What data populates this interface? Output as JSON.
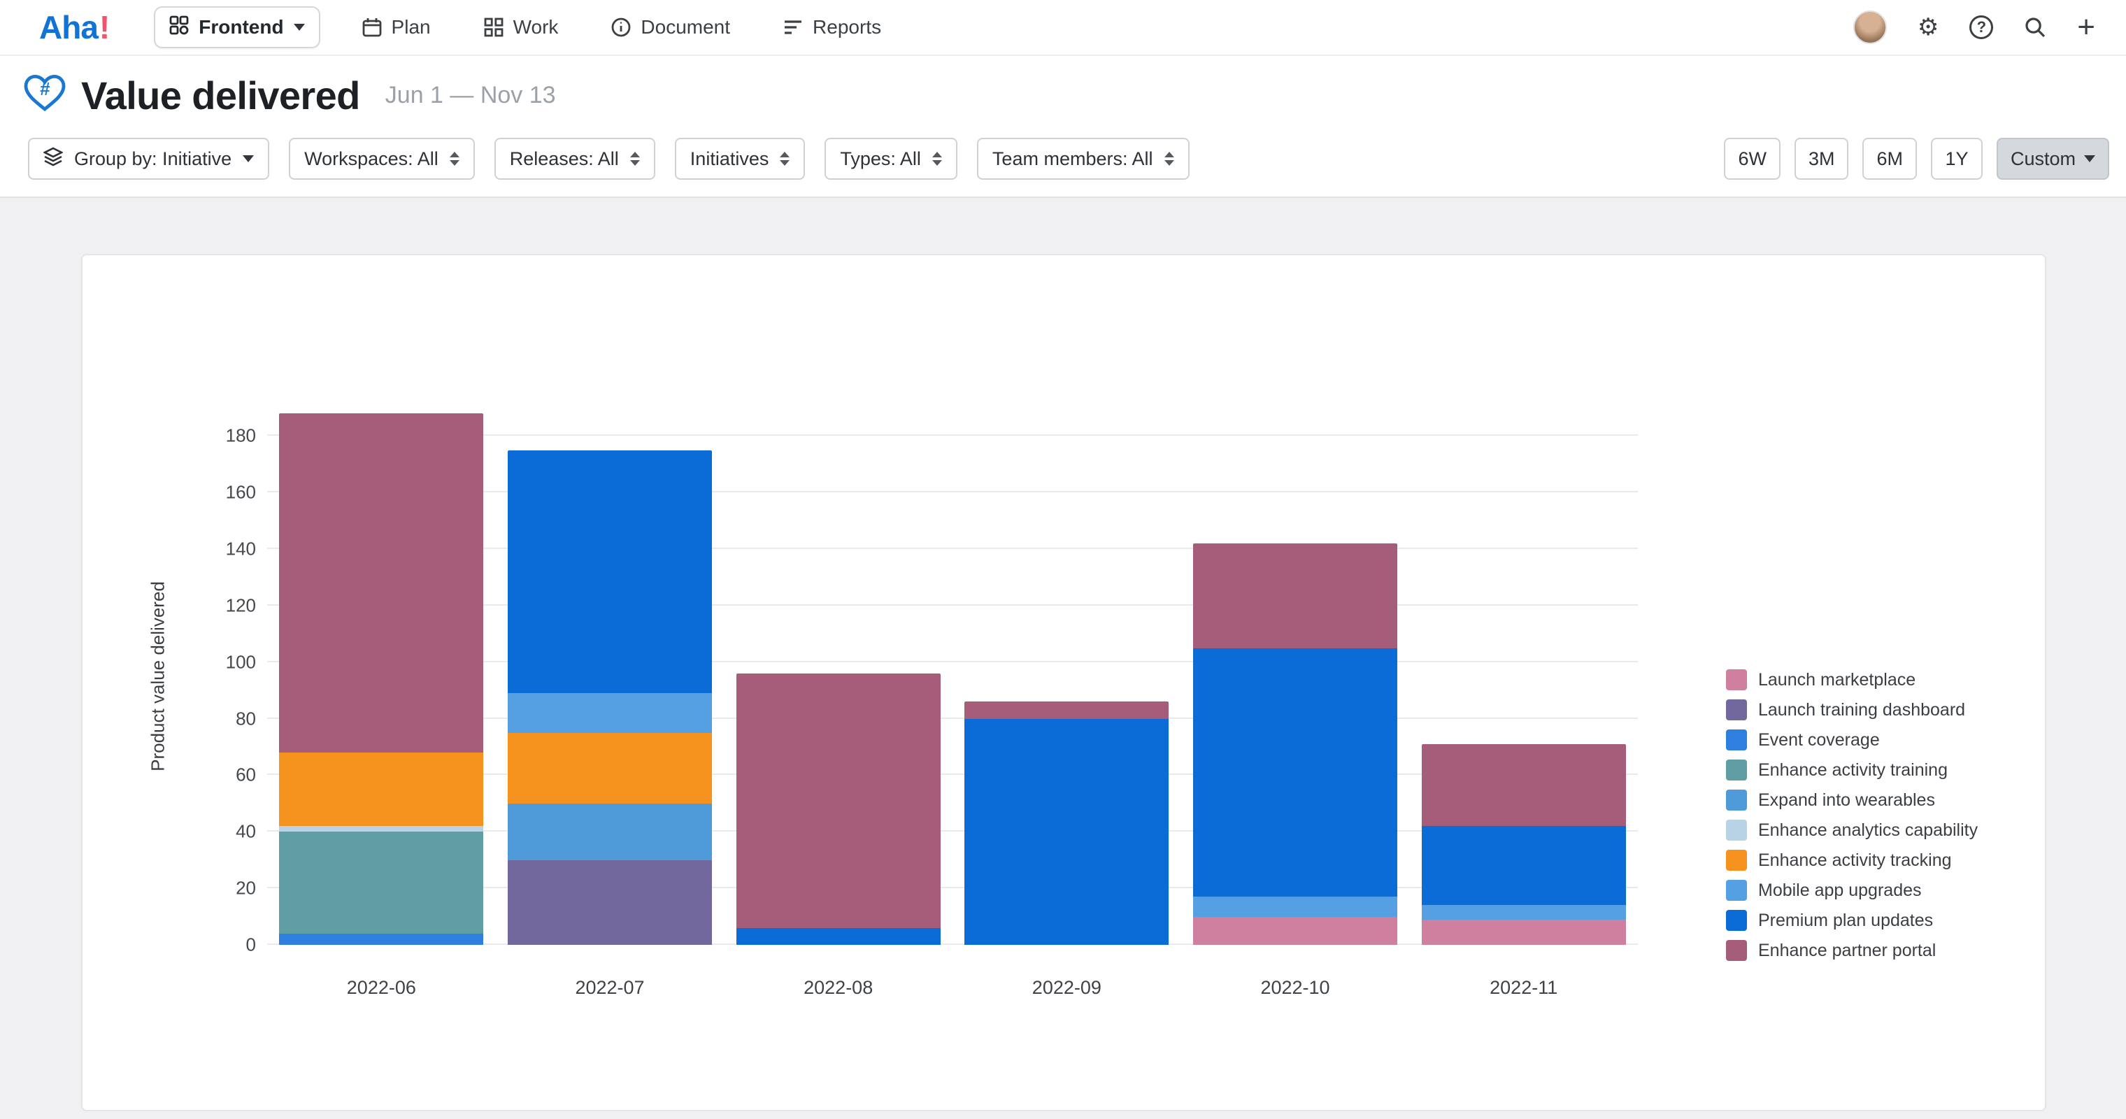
{
  "nav": {
    "logo_text": "Aha",
    "logo_mark": "!",
    "workspace": {
      "label": "Frontend",
      "icon": "workspace-icon"
    },
    "items": [
      {
        "label": "Plan",
        "icon": "calendar-icon"
      },
      {
        "label": "Work",
        "icon": "grid-icon"
      },
      {
        "label": "Document",
        "icon": "info-circle-icon"
      },
      {
        "label": "Reports",
        "icon": "report-bars-icon"
      }
    ],
    "right_icons": [
      "user-avatar",
      "settings-gear-icon",
      "help-icon",
      "search-icon",
      "create-plus-icon"
    ]
  },
  "header": {
    "title": "Value delivered",
    "title_icon": "heart-hash-icon",
    "date_range": "Jun 1 — Nov 13"
  },
  "filters": {
    "group_by_label": "Group by: Initiative",
    "group_by_icon": "layers-icon",
    "dropdowns": [
      "Workspaces: All",
      "Releases: All",
      "Initiatives",
      "Types: All",
      "Team members: All"
    ],
    "time_ranges": [
      "6W",
      "3M",
      "6M",
      "1Y"
    ],
    "custom_label": "Custom",
    "active_range": "Custom"
  },
  "chart_data": {
    "type": "bar",
    "stacked": true,
    "title": "",
    "xlabel": "",
    "ylabel": "Product value delivered",
    "categories": [
      "2022-06",
      "2022-07",
      "2022-08",
      "2022-09",
      "2022-10",
      "2022-11"
    ],
    "series": [
      {
        "name": "Launch marketplace",
        "color": "#cf809e",
        "values": [
          0,
          0,
          0,
          0,
          10,
          9
        ]
      },
      {
        "name": "Launch training dashboard",
        "color": "#72689d",
        "values": [
          0,
          30,
          0,
          0,
          0,
          0
        ]
      },
      {
        "name": "Event coverage",
        "color": "#2e7fdf",
        "values": [
          4,
          0,
          0,
          0,
          0,
          0
        ]
      },
      {
        "name": "Enhance activity training",
        "color": "#5f9fa4",
        "values": [
          36,
          0,
          0,
          0,
          0,
          0
        ]
      },
      {
        "name": "Expand into wearables",
        "color": "#4f9ad9",
        "values": [
          0,
          20,
          0,
          0,
          0,
          0
        ]
      },
      {
        "name": "Enhance analytics capability",
        "color": "#b9d3e6",
        "values": [
          2,
          0,
          0,
          0,
          0,
          0
        ]
      },
      {
        "name": "Enhance activity tracking",
        "color": "#f6921e",
        "values": [
          26,
          25,
          0,
          0,
          0,
          0
        ]
      },
      {
        "name": "Mobile app upgrades",
        "color": "#559fe3",
        "values": [
          0,
          14,
          0,
          0,
          7,
          5
        ]
      },
      {
        "name": "Premium plan updates",
        "color": "#0b6cd8",
        "values": [
          0,
          86,
          6,
          80,
          88,
          28
        ]
      },
      {
        "name": "Enhance partner portal",
        "color": "#a55d79",
        "values": [
          120,
          0,
          90,
          6,
          37,
          29
        ]
      }
    ],
    "ylim": [
      0,
      190
    ],
    "yticks": [
      0,
      20,
      40,
      60,
      80,
      100,
      120,
      140,
      160,
      180
    ],
    "grid": true,
    "legend_position": "right"
  }
}
